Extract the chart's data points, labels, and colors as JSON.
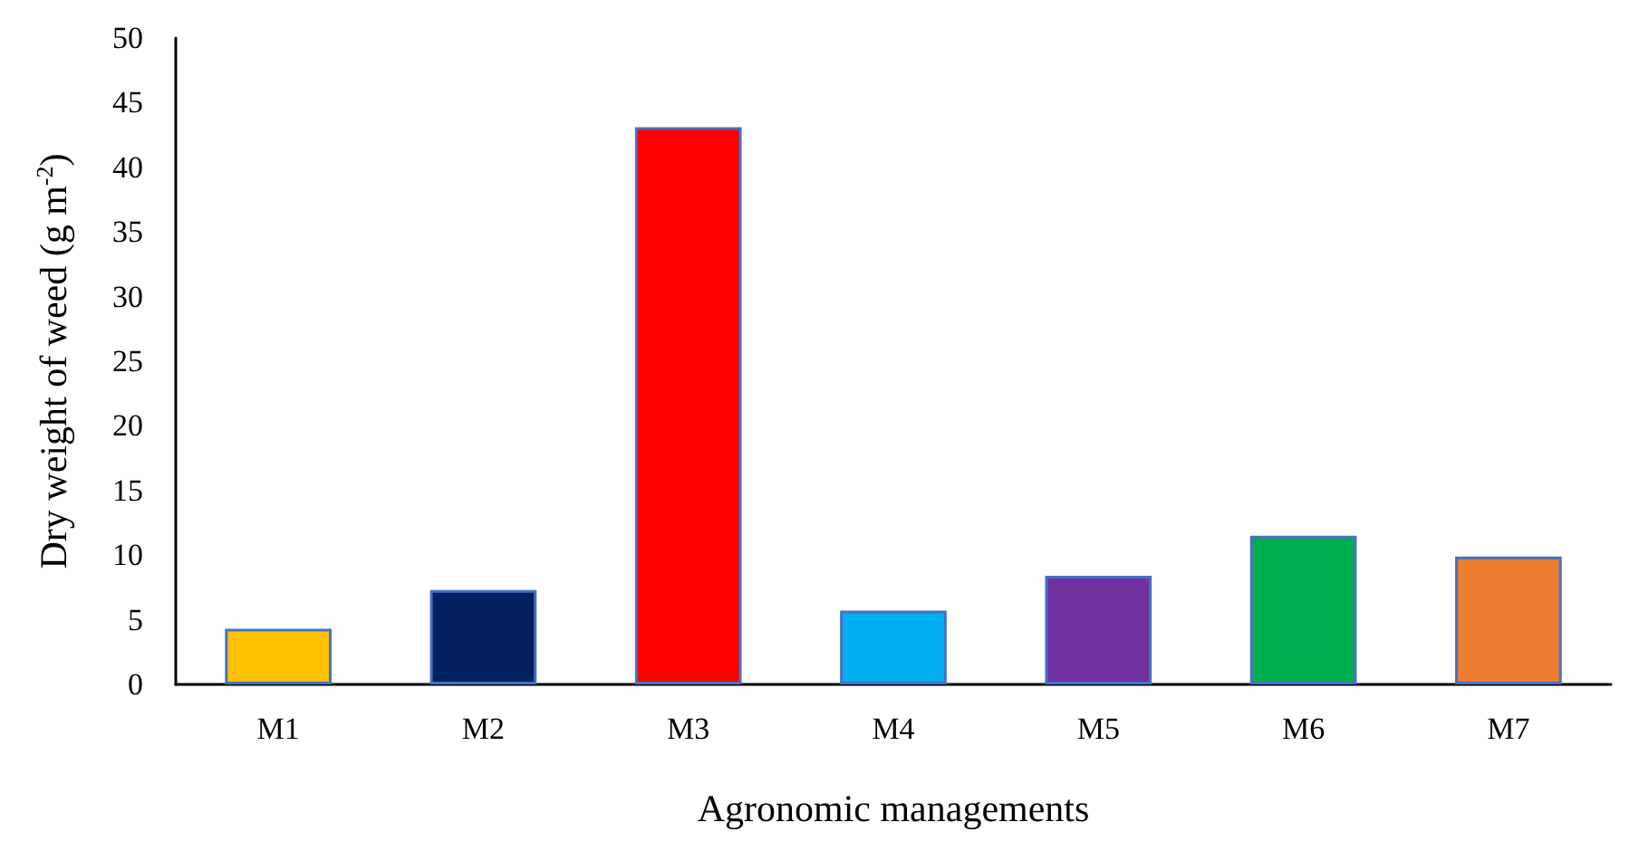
{
  "chart_data": {
    "type": "bar",
    "xlabel": "Agronomic managements",
    "ylabel": "Dry weight of weed (g m$^{-2}$)",
    "categories": [
      "M1",
      "M2",
      "M3",
      "M4",
      "M5",
      "M6",
      "M7"
    ],
    "values": [
      4.3,
      7.3,
      43.1,
      5.7,
      8.4,
      11.5,
      9.9
    ],
    "colors": [
      "#ffc000",
      "#002060",
      "#ff0000",
      "#00b0f0",
      "#7030a0",
      "#00b050",
      "#ed7d31"
    ],
    "ylim": [
      0,
      50
    ],
    "yticks": [
      0,
      5,
      10,
      15,
      20,
      25,
      30,
      35,
      40,
      45,
      50
    ],
    "grid": false
  }
}
